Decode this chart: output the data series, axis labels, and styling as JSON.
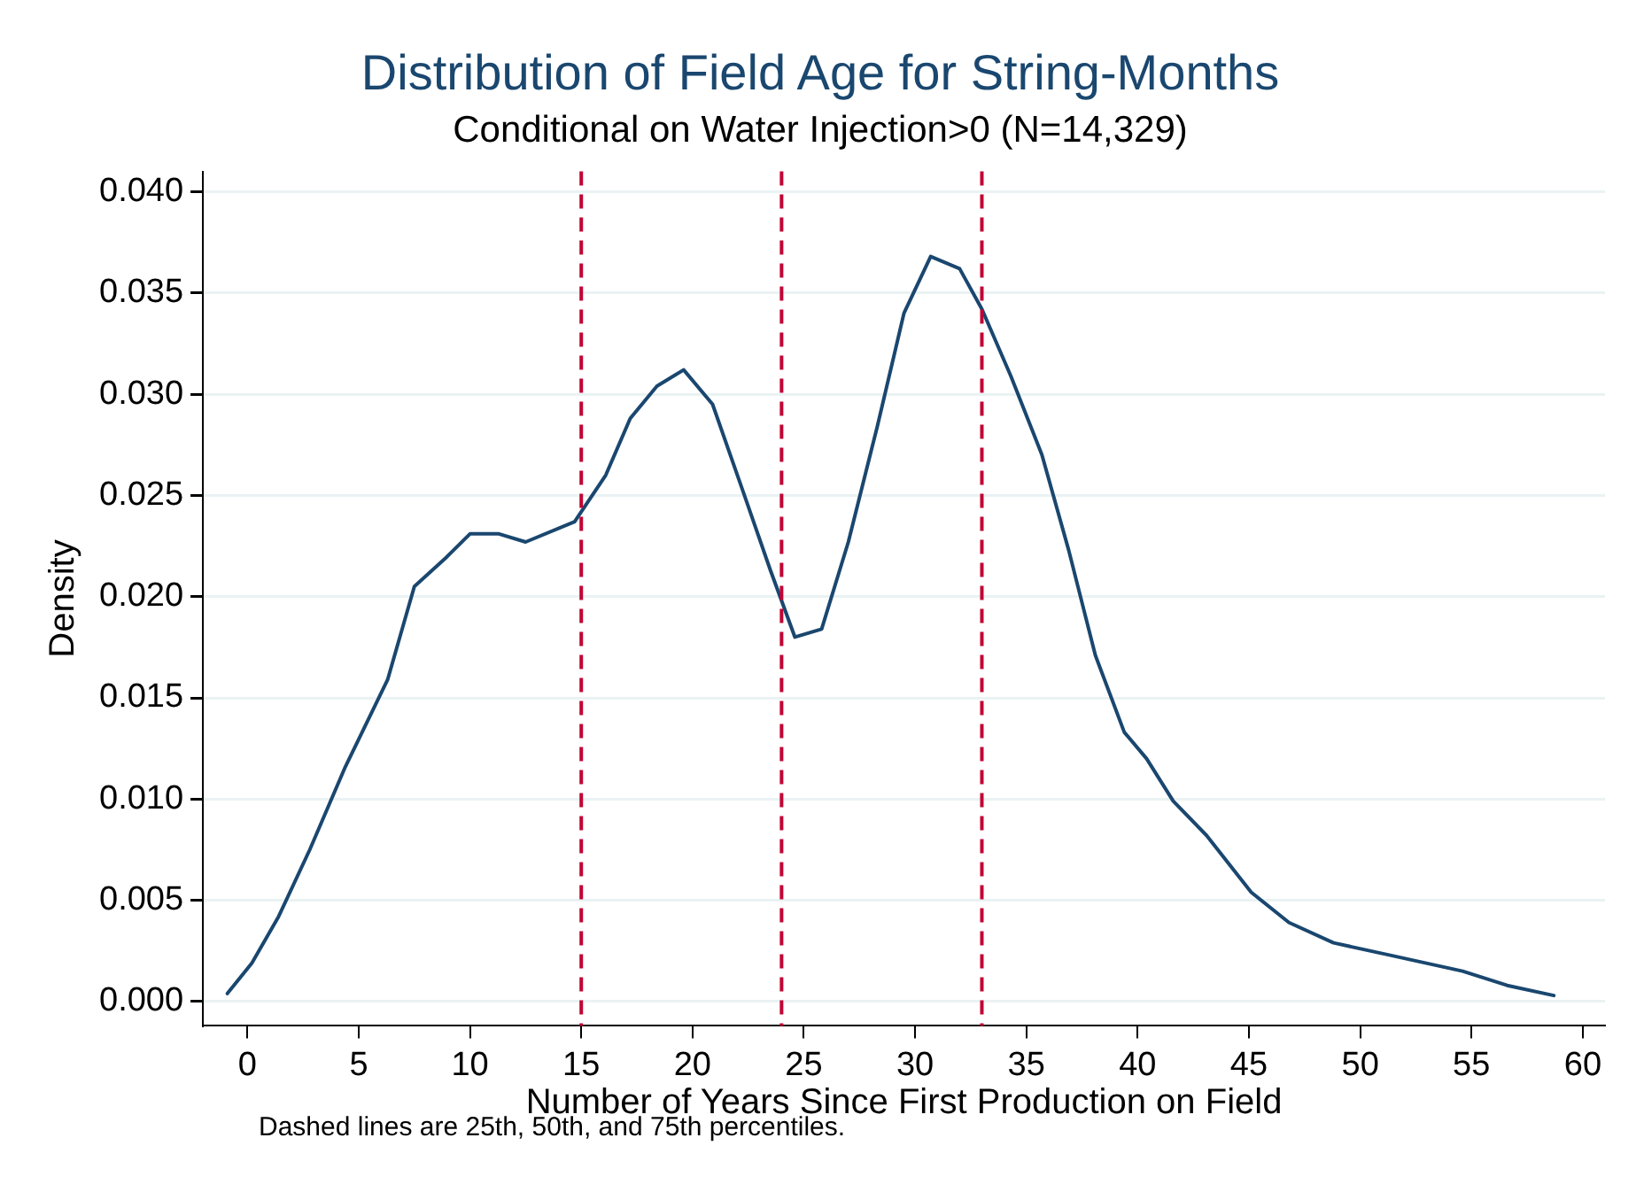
{
  "chart_data": {
    "type": "line",
    "title": "Distribution of Field Age for String-Months",
    "subtitle": "Conditional on Water Injection>0 (N=14,329)",
    "xlabel": "Number of Years Since First Production on Field",
    "ylabel": "Density",
    "annotations": [
      "Dashed lines are 25th, 50th, and 75th percentiles."
    ],
    "series": [
      {
        "color": "#1a476f",
        "x": [
          -0.9,
          0.2,
          1.4,
          2.8,
          4.4,
          6.3,
          7.5,
          8.9,
          10,
          11.3,
          12.5,
          14.7,
          16.1,
          17.2,
          18.4,
          19.6,
          20.9,
          22.3,
          23.5,
          24.6,
          25.8,
          27,
          28.3,
          29.5,
          30.7,
          32,
          33,
          34.3,
          35.7,
          36.9,
          38.1,
          39.4,
          40.4,
          41.6,
          43.1,
          45.1,
          46.8,
          48.8,
          51.3,
          54.6,
          56.6,
          58.7
        ],
        "values": [
          0.0004,
          0.0019,
          0.0042,
          0.0075,
          0.0116,
          0.0159,
          0.0205,
          0.0219,
          0.0231,
          0.0231,
          0.0227,
          0.0237,
          0.026,
          0.0288,
          0.0304,
          0.0312,
          0.0295,
          0.0251,
          0.0213,
          0.018,
          0.0184,
          0.0227,
          0.0284,
          0.034,
          0.0368,
          0.0362,
          0.0342,
          0.0309,
          0.027,
          0.0223,
          0.0171,
          0.0133,
          0.012,
          0.0099,
          0.0082,
          0.0054,
          0.0039,
          0.0029,
          0.0023,
          0.0015,
          0.0008,
          0.0003
        ]
      }
    ],
    "xlim": [
      -2,
      61
    ],
    "xticks": [
      0,
      5,
      10,
      15,
      20,
      25,
      30,
      35,
      40,
      45,
      50,
      55,
      60
    ],
    "ylim": [
      -0.0012,
      0.041
    ],
    "yticks": [
      {
        "value": 0,
        "label": "0.000"
      },
      {
        "value": 0.005,
        "label": "0.005"
      },
      {
        "value": 0.01,
        "label": "0.010"
      },
      {
        "value": 0.015,
        "label": "0.015"
      },
      {
        "value": 0.02,
        "label": "0.020"
      },
      {
        "value": 0.025,
        "label": "0.025"
      },
      {
        "value": 0.03,
        "label": "0.030"
      },
      {
        "value": 0.035,
        "label": "0.035"
      },
      {
        "value": 0.04,
        "label": "0.040"
      }
    ],
    "ref_lines": [
      {
        "axis": "x",
        "value": 15,
        "color": "#c10534",
        "line_style": "dashed"
      },
      {
        "axis": "x",
        "value": 24,
        "color": "#c10534",
        "line_style": "dashed"
      },
      {
        "axis": "x",
        "value": 33,
        "color": "#c10534",
        "line_style": "dashed"
      }
    ],
    "grid": "y",
    "legend": false,
    "marker": "none",
    "line_style": "solid"
  }
}
